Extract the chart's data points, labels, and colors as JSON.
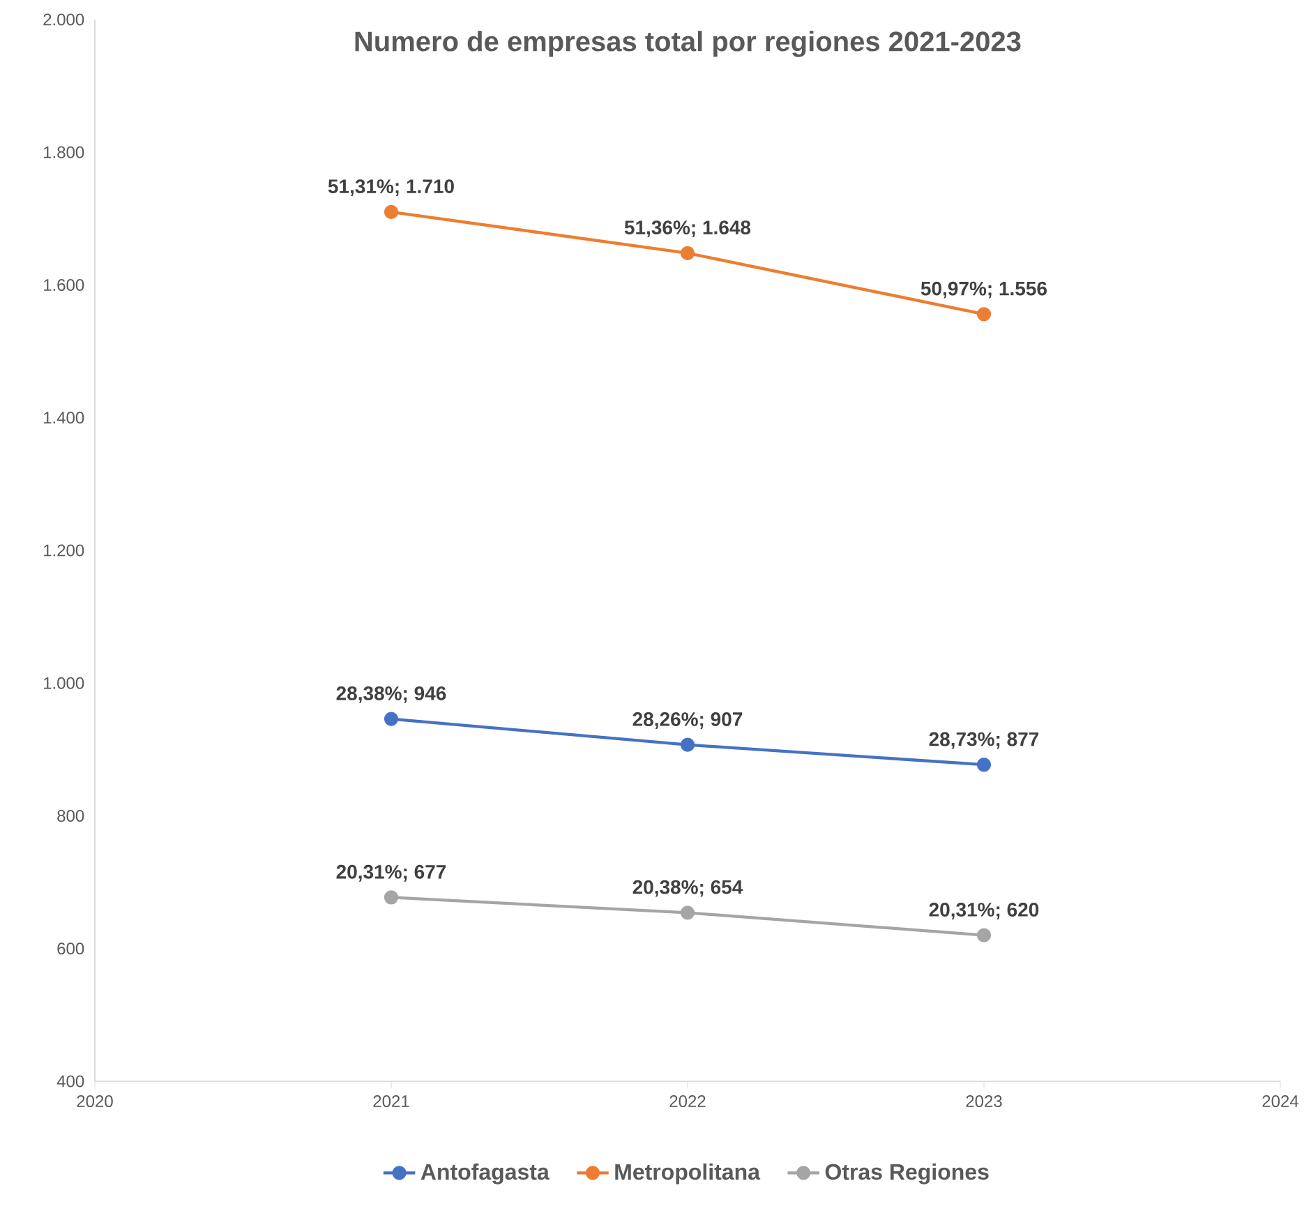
{
  "chart_data": {
    "type": "line",
    "title": "Numero de empresas total por regiones 2021-2023",
    "x": [
      2021,
      2022,
      2023
    ],
    "xlim": [
      2020,
      2024
    ],
    "xticks": [
      2020,
      2021,
      2022,
      2023,
      2024
    ],
    "ylim": [
      400,
      2000
    ],
    "yticks": [
      {
        "value": 400,
        "label": "400"
      },
      {
        "value": 600,
        "label": "600"
      },
      {
        "value": 800,
        "label": "800"
      },
      {
        "value": 1000,
        "label": "1.000"
      },
      {
        "value": 1200,
        "label": "1.200"
      },
      {
        "value": 1400,
        "label": "1.400"
      },
      {
        "value": 1600,
        "label": "1.600"
      },
      {
        "value": 1800,
        "label": "1.800"
      },
      {
        "value": 2000,
        "label": "2.000"
      }
    ],
    "series": [
      {
        "name": "Antofagasta",
        "color": "#4472c4",
        "values": [
          946,
          907,
          877
        ],
        "value_labels": [
          "28,38%; 946",
          "28,26%; 907",
          "28,73%;  877"
        ]
      },
      {
        "name": "Metropolitana",
        "color": "#ed7d31",
        "values": [
          1710,
          1648,
          1556
        ],
        "value_labels": [
          "51,31%; 1.710",
          "51,36%; 1.648",
          "50,97%;  1.556"
        ]
      },
      {
        "name": "Otras Regiones",
        "color": "#a5a5a5",
        "values": [
          677,
          654,
          620
        ],
        "value_labels": [
          "20,31%; 677",
          "20,38%; 654",
          "20,31%;  620"
        ]
      }
    ],
    "marker": "circle",
    "legend": "bottom"
  }
}
